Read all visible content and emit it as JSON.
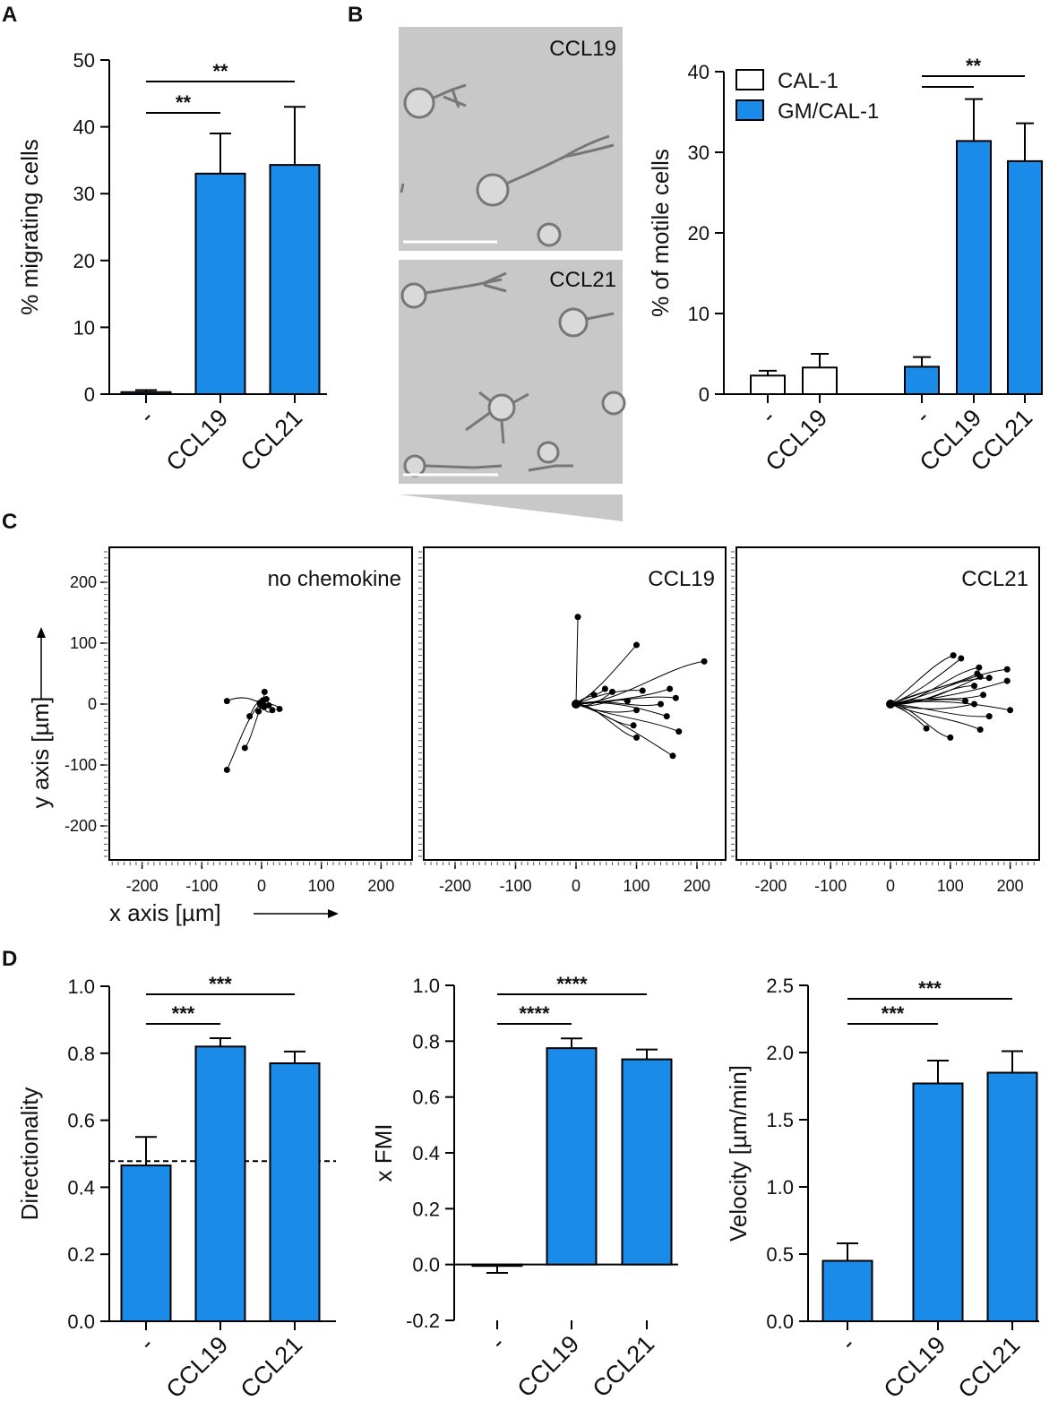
{
  "figure": {
    "panels": [
      "A",
      "B",
      "C",
      "D"
    ]
  },
  "colors": {
    "bar_fill": "#1a8be8",
    "bar_stroke": "#000000",
    "white_bar": "#ffffff",
    "micrograph_bg": "#c8c8c8"
  },
  "micrographs": [
    {
      "label": "CCL19"
    },
    {
      "label": "CCL21"
    }
  ],
  "chart_data": [
    {
      "panel": "A",
      "type": "bar",
      "categories": [
        "-",
        "CCL19",
        "CCL21"
      ],
      "values": [
        0.3,
        33.0,
        34.3
      ],
      "errors": [
        0.3,
        6.0,
        8.7
      ],
      "ylabel": "% migrating cells",
      "ylim": [
        0,
        50
      ],
      "yticks": [
        "0",
        "10",
        "20",
        "30",
        "40",
        "50"
      ],
      "significance": [
        {
          "from": 0,
          "to": 1,
          "label": "**"
        },
        {
          "from": 0,
          "to": 2,
          "label": "**"
        }
      ]
    },
    {
      "panel": "B",
      "type": "bar",
      "groups": [
        {
          "name": "CAL-1",
          "categories": [
            "-",
            "CCL19"
          ],
          "values": [
            2.3,
            3.3
          ],
          "errors": [
            0.6,
            1.7
          ]
        },
        {
          "name": "GM/CAL-1",
          "categories": [
            "-",
            "CCL19",
            "CCL21"
          ],
          "values": [
            3.4,
            31.4,
            28.9
          ],
          "errors": [
            1.2,
            5.2,
            4.7
          ]
        }
      ],
      "legend": [
        {
          "name": "CAL-1",
          "swatch": "white"
        },
        {
          "name": "GM/CAL-1",
          "swatch": "blue"
        }
      ],
      "ylabel": "% of motile cells",
      "ylim": [
        0,
        40
      ],
      "yticks": [
        "0",
        "10",
        "20",
        "30",
        "40"
      ],
      "significance": [
        {
          "from": 2,
          "to": 3,
          "label": ""
        },
        {
          "from": 2,
          "to": 4,
          "label": "**"
        }
      ]
    },
    {
      "panel": "C",
      "type": "scatter",
      "subtype": "cell-tracks",
      "xlabel": "x axis [µm]",
      "ylabel": "y axis [µm]",
      "xlim": [
        -250,
        250
      ],
      "ylim": [
        -250,
        250
      ],
      "xticks": [
        "-200",
        "-100",
        "0",
        "100",
        "200"
      ],
      "yticks": [
        "200",
        "100",
        "0",
        "-100",
        "-200"
      ],
      "plots": [
        {
          "title": "no chemokine",
          "endpoints": [
            [
              -58,
              5
            ],
            [
              5,
              20
            ],
            [
              12,
              -2
            ],
            [
              -5,
              -12
            ],
            [
              30,
              -8
            ],
            [
              -28,
              -72
            ],
            [
              -58,
              -108
            ],
            [
              2,
              6
            ],
            [
              4,
              -5
            ],
            [
              -3,
              2
            ],
            [
              8,
              8
            ],
            [
              18,
              -10
            ],
            [
              -20,
              -20
            ]
          ]
        },
        {
          "title": "CCL19",
          "endpoints": [
            [
              3,
              143
            ],
            [
              100,
              97
            ],
            [
              212,
              70
            ],
            [
              48,
              25
            ],
            [
              30,
              15
            ],
            [
              60,
              20
            ],
            [
              110,
              22
            ],
            [
              155,
              25
            ],
            [
              85,
              5
            ],
            [
              140,
              0
            ],
            [
              165,
              10
            ],
            [
              100,
              -10
            ],
            [
              150,
              -20
            ],
            [
              95,
              -35
            ],
            [
              170,
              -45
            ],
            [
              100,
              -55
            ],
            [
              160,
              -85
            ]
          ]
        },
        {
          "title": "CCL21",
          "endpoints": [
            [
              105,
              80
            ],
            [
              118,
              75
            ],
            [
              148,
              60
            ],
            [
              145,
              50
            ],
            [
              195,
              57
            ],
            [
              150,
              45
            ],
            [
              165,
              43
            ],
            [
              195,
              38
            ],
            [
              140,
              30
            ],
            [
              155,
              15
            ],
            [
              125,
              5
            ],
            [
              140,
              0
            ],
            [
              200,
              -10
            ],
            [
              165,
              -20
            ],
            [
              150,
              -42
            ],
            [
              100,
              -55
            ],
            [
              60,
              -40
            ]
          ]
        }
      ]
    },
    {
      "panel": "D1",
      "type": "bar",
      "categories": [
        "-",
        "CCL19",
        "CCL21"
      ],
      "values": [
        0.465,
        0.82,
        0.77
      ],
      "errors": [
        0.085,
        0.025,
        0.035
      ],
      "ylabel": "Directionality",
      "ylim": [
        0,
        1.0
      ],
      "yticks": [
        "0.0",
        "0.2",
        "0.4",
        "0.6",
        "0.8",
        "1.0"
      ],
      "reference_line": 0.478,
      "significance": [
        {
          "from": 0,
          "to": 1,
          "label": "***"
        },
        {
          "from": 0,
          "to": 2,
          "label": "***"
        }
      ]
    },
    {
      "panel": "D2",
      "type": "bar",
      "categories": [
        "-",
        "CCL19",
        "CCL21"
      ],
      "values": [
        -0.005,
        0.775,
        0.735
      ],
      "errors": [
        0.025,
        0.035,
        0.035
      ],
      "ylabel": "x FMI",
      "ylim": [
        -0.2,
        1.0
      ],
      "yticks": [
        "-0.2",
        "0.0",
        "0.2",
        "0.4",
        "0.6",
        "0.8",
        "1.0"
      ],
      "significance": [
        {
          "from": 0,
          "to": 1,
          "label": "****"
        },
        {
          "from": 0,
          "to": 2,
          "label": "****"
        }
      ]
    },
    {
      "panel": "D3",
      "type": "bar",
      "categories": [
        "-",
        "CCL19",
        "CCL21"
      ],
      "values": [
        0.45,
        1.77,
        1.85
      ],
      "errors": [
        0.13,
        0.17,
        0.16
      ],
      "ylabel": "Velocity [µm/min]",
      "ylim": [
        0,
        2.5
      ],
      "yticks": [
        "0.0",
        "0.5",
        "1.0",
        "1.5",
        "2.0",
        "2.5"
      ],
      "significance": [
        {
          "from": 0,
          "to": 1,
          "label": "***"
        },
        {
          "from": 0,
          "to": 2,
          "label": "***"
        }
      ]
    }
  ]
}
